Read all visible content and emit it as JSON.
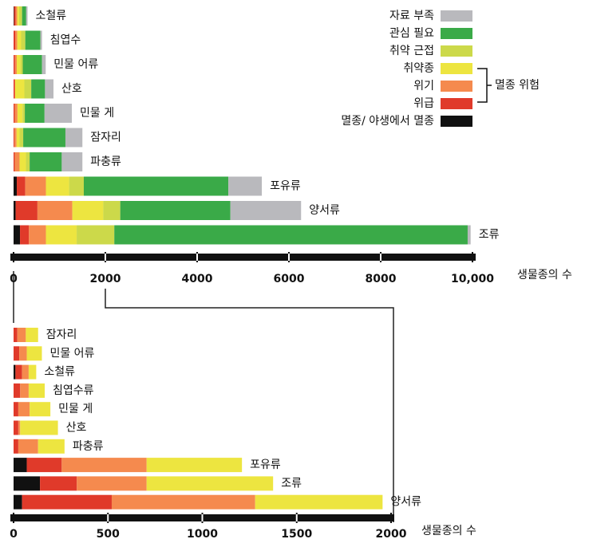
{
  "chart_data": [
    {
      "type": "stacked-barh",
      "categories": [
        "소철류",
        "침엽수",
        "민물 어류",
        "산호",
        "민물 게",
        "잠자리",
        "파충류",
        "포유류",
        "양서류",
        "조류"
      ],
      "series": [
        {
          "name": "멸종/ 야생에서 멸종",
          "color": "#111111",
          "values": [
            10,
            0,
            0,
            0,
            0,
            0,
            0,
            70,
            45,
            140
          ]
        },
        {
          "name": "위급",
          "color": "#e03a2a",
          "values": [
            35,
            35,
            30,
            25,
            25,
            20,
            25,
            185,
            475,
            195
          ]
        },
        {
          "name": "위기",
          "color": "#f58a4e",
          "values": [
            35,
            45,
            40,
            10,
            60,
            45,
            105,
            450,
            760,
            370
          ]
        },
        {
          "name": "취약종",
          "color": "#ede540",
          "values": [
            40,
            85,
            80,
            200,
            110,
            65,
            140,
            505,
            675,
            670
          ]
        },
        {
          "name": "취약 근접",
          "color": "#ccd94a",
          "values": [
            65,
            90,
            50,
            150,
            50,
            80,
            80,
            320,
            370,
            820
          ]
        },
        {
          "name": "관심 필요",
          "color": "#3aaa48",
          "values": [
            90,
            330,
            420,
            300,
            430,
            920,
            700,
            3150,
            2400,
            7700
          ]
        },
        {
          "name": "자료 부족",
          "color": "#b9b9bd",
          "values": [
            30,
            35,
            80,
            185,
            595,
            370,
            450,
            730,
            1540,
            65
          ]
        }
      ],
      "xlim": [
        0,
        10000
      ],
      "xticks": [
        0,
        2000,
        4000,
        6000,
        8000,
        {
          "value": 10000,
          "label": "10,000"
        }
      ],
      "x_label": "생물종의 수",
      "legend_order": [
        6,
        5,
        4,
        3,
        2,
        1,
        0
      ],
      "bracket_label": "멸종 위험"
    },
    {
      "type": "stacked-barh",
      "categories": [
        "잠자리",
        "민물 어류",
        "소철류",
        "침엽수류",
        "민물 게",
        "산호",
        "파충류",
        "포유류",
        "조류",
        "양서류"
      ],
      "series": [
        {
          "color": "#111111",
          "values": [
            0,
            0,
            10,
            0,
            0,
            0,
            0,
            70,
            140,
            45
          ]
        },
        {
          "color": "#e03a2a",
          "values": [
            20,
            30,
            35,
            35,
            25,
            25,
            25,
            185,
            195,
            475
          ]
        },
        {
          "color": "#f58a4e",
          "values": [
            45,
            40,
            35,
            45,
            60,
            10,
            105,
            450,
            370,
            760
          ]
        },
        {
          "color": "#ede540",
          "values": [
            65,
            80,
            40,
            85,
            110,
            200,
            140,
            505,
            670,
            675
          ]
        }
      ],
      "xlim": [
        0,
        2000
      ],
      "xticks": [
        0,
        500,
        1000,
        1500,
        2000
      ],
      "x_label": "생물종의 수"
    }
  ]
}
